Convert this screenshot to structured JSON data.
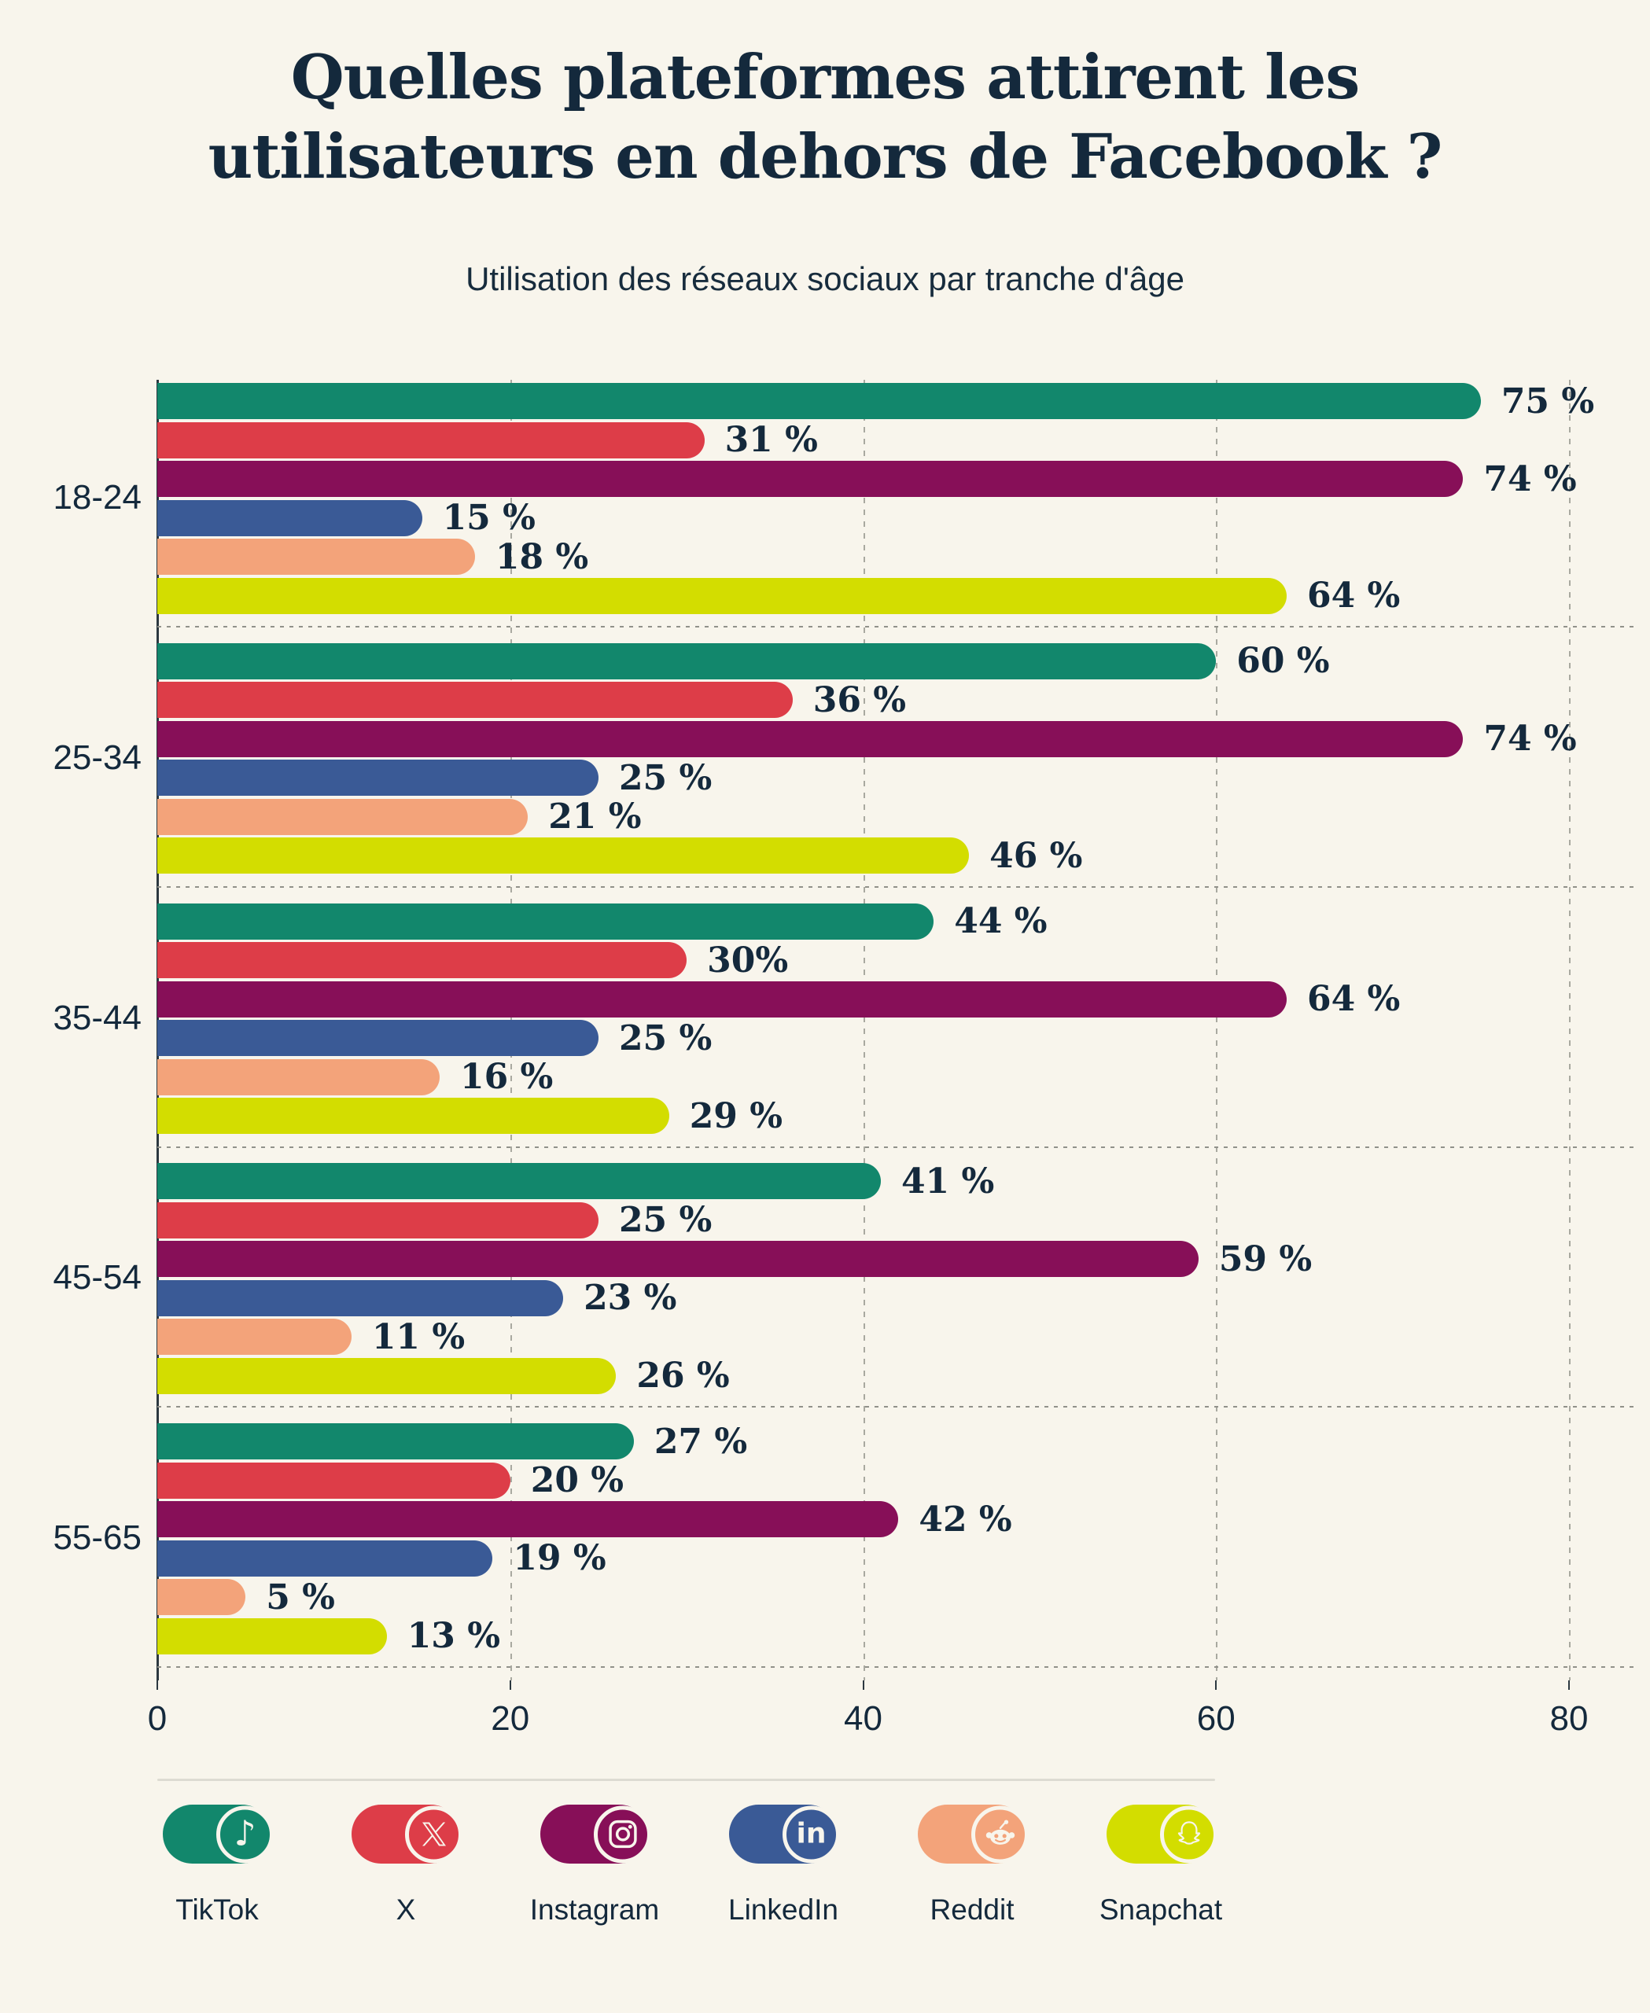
{
  "header": {
    "title": "Quelles plateformes attirent les\nutilisateurs en dehors de Facebook ?",
    "subtitle": "Utilisation des réseaux sociaux par tranche d'âge"
  },
  "colors": {
    "background": "#F8F5EC",
    "text_navy": "#14293C",
    "axis": "#2C3840",
    "gridline": "#A9A9A0",
    "group_separator": "#91918A",
    "legend_separator": "#DDDBD2"
  },
  "chart_data": {
    "type": "bar",
    "orientation": "horizontal",
    "title": "Quelles plateformes attirent les utilisateurs en dehors de Facebook ?",
    "subtitle": "Utilisation des réseaux sociaux par tranche d'âge",
    "categories": [
      "18-24",
      "25-34",
      "35-44",
      "45-54",
      "55-65"
    ],
    "series": [
      {
        "name": "TikTok",
        "platform": "tiktok",
        "color": "#12876C",
        "values": [
          75,
          60,
          44,
          41,
          27
        ],
        "value_labels": [
          "75 %",
          "60 %",
          "44 %",
          "41 %",
          "27 %"
        ]
      },
      {
        "name": "X",
        "platform": "x",
        "color": "#DD3D48",
        "values": [
          31,
          36,
          30,
          25,
          20
        ],
        "value_labels": [
          "31 %",
          "36 %",
          "30%",
          "25 %",
          "20 %"
        ]
      },
      {
        "name": "Instagram",
        "platform": "instagram",
        "color": "#870F58",
        "values": [
          74,
          74,
          64,
          59,
          42
        ],
        "value_labels": [
          "74 %",
          "74 %",
          "64 %",
          "59 %",
          "42 %"
        ]
      },
      {
        "name": "LinkedIn",
        "platform": "linkedin",
        "color": "#3A5A96",
        "values": [
          15,
          25,
          25,
          23,
          19
        ],
        "value_labels": [
          "15 %",
          "25 %",
          "25 %",
          "23 %",
          "19 %"
        ]
      },
      {
        "name": "Reddit",
        "platform": "reddit",
        "color": "#F3A37A",
        "values": [
          18,
          21,
          16,
          11,
          5
        ],
        "value_labels": [
          "18 %",
          "21 %",
          "16 %",
          "11 %",
          "5 %"
        ]
      },
      {
        "name": "Snapchat",
        "platform": "snapchat",
        "color": "#D3DD00",
        "values": [
          64,
          46,
          29,
          26,
          13
        ],
        "value_labels": [
          "64 %",
          "46 %",
          "29 %",
          "26 %",
          "13 %"
        ]
      }
    ],
    "xlabel": "",
    "ylabel": "",
    "xlim": [
      0,
      80
    ],
    "xticks": [
      0,
      20,
      40,
      60,
      80
    ],
    "grid": "vertical-dashed",
    "legend_position": "bottom"
  }
}
